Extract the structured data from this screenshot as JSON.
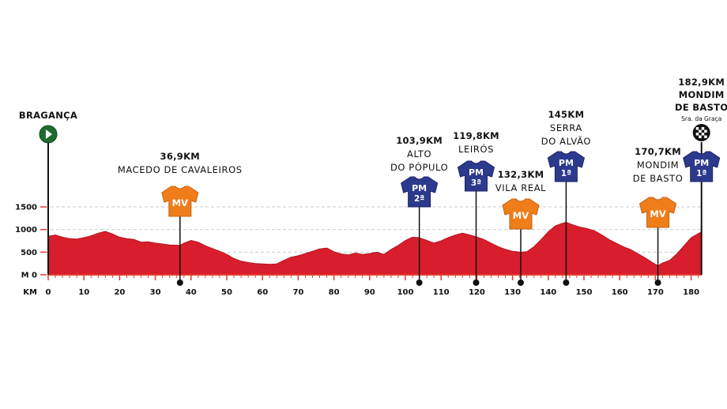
{
  "chart_data": {
    "type": "area",
    "title": "",
    "xlabel": "KM",
    "ylabel": "M",
    "xlim": [
      0,
      182.9
    ],
    "ylim": [
      0,
      1500
    ],
    "x_ticks": [
      0,
      10,
      20,
      30,
      40,
      50,
      60,
      70,
      80,
      90,
      100,
      110,
      120,
      130,
      140,
      150,
      160,
      170,
      180
    ],
    "y_ticks": [
      0,
      500,
      1000,
      1500
    ],
    "y_tick_labels": [
      "M 0",
      "500",
      "1000",
      "1500"
    ],
    "x_axis_label": "KM",
    "grid": "dashed horizontal",
    "colors": {
      "profile": "#d81e2c",
      "profile_edge": "#b31520",
      "mv": "#ef7d1a",
      "pm": "#2b3a8c",
      "axis": "#e53a2f"
    },
    "series": [
      {
        "x": [
          0,
          2,
          4,
          6,
          8,
          10,
          12,
          14,
          16,
          18,
          20,
          22,
          24,
          26,
          28,
          30,
          32,
          34,
          36.9,
          38,
          40,
          42,
          44,
          46,
          48,
          50,
          52,
          54,
          56,
          58,
          60,
          62,
          64,
          66,
          68,
          70,
          72,
          74,
          76,
          78,
          80,
          82,
          84,
          86,
          88,
          90,
          92,
          94,
          96,
          98,
          100,
          102,
          103.9,
          106,
          108,
          110,
          112,
          114,
          116,
          118,
          119.8,
          122,
          124,
          126,
          128,
          130,
          132.3,
          134,
          136,
          138,
          140,
          142,
          144,
          145,
          147,
          149,
          151,
          153,
          155,
          157,
          159,
          161,
          163,
          165,
          167,
          169,
          170.7,
          172,
          174,
          176,
          178,
          180,
          182.9
        ],
        "y": [
          850,
          880,
          830,
          800,
          790,
          820,
          860,
          920,
          960,
          900,
          830,
          800,
          780,
          720,
          730,
          700,
          680,
          660,
          650,
          700,
          760,
          720,
          640,
          580,
          520,
          450,
          360,
          300,
          270,
          250,
          240,
          230,
          240,
          320,
          390,
          420,
          470,
          520,
          570,
          590,
          510,
          460,
          440,
          480,
          450,
          470,
          500,
          450,
          560,
          650,
          760,
          830,
          820,
          760,
          700,
          750,
          820,
          880,
          920,
          880,
          840,
          780,
          700,
          620,
          560,
          520,
          500,
          510,
          620,
          780,
          950,
          1080,
          1140,
          1160,
          1100,
          1050,
          1020,
          970,
          880,
          780,
          700,
          620,
          560,
          470,
          380,
          280,
          200,
          260,
          320,
          460,
          640,
          820,
          950
        ]
      }
    ],
    "start": {
      "name": "BRAGANÇA",
      "km": 0
    },
    "finish": {
      "distance": "182,9KM",
      "line1": "MONDIM",
      "line2": "DE BASTO",
      "sub": "Sra. da Graça",
      "km": 182.9,
      "jersey": "PM",
      "cat": "1ª"
    },
    "climbs": [
      {
        "km": 36.9,
        "distance": "36,9KM",
        "lines": [
          "MACEDO DE CAVALEIROS"
        ],
        "jersey": "MV",
        "cat": ""
      },
      {
        "km": 103.9,
        "distance": "103,9KM",
        "lines": [
          "ALTO",
          "DO PÓPULO"
        ],
        "jersey": "PM",
        "cat": "2ª"
      },
      {
        "km": 119.8,
        "distance": "119,8KM",
        "lines": [
          "LEIRÓS"
        ],
        "jersey": "PM",
        "cat": "3ª"
      },
      {
        "km": 132.3,
        "distance": "132,3KM",
        "lines": [
          "VILA REAL"
        ],
        "jersey": "MV",
        "cat": ""
      },
      {
        "km": 145,
        "distance": "145KM",
        "lines": [
          "SERRA",
          "DO ALVÃO"
        ],
        "jersey": "PM",
        "cat": "1ª"
      },
      {
        "km": 170.7,
        "distance": "170,7KM",
        "lines": [
          "MONDIM",
          "DE BASTO"
        ],
        "jersey": "MV",
        "cat": ""
      }
    ]
  }
}
